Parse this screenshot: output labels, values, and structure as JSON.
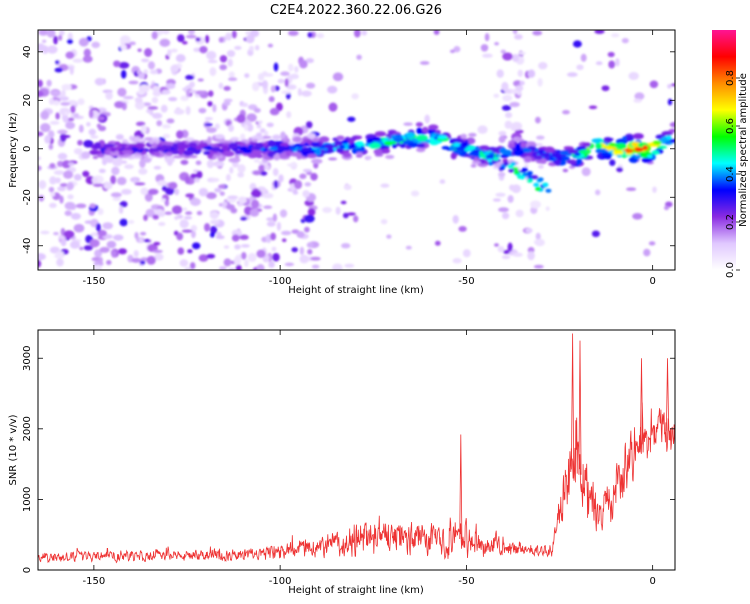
{
  "figure": {
    "title": "C2E4.2022.360.22.06.G26"
  },
  "chart_data": [
    {
      "type": "heatmap",
      "xlabel": "Height of straight line (km)",
      "ylabel": "Frequency (Hz)",
      "xlim": [
        -165,
        6
      ],
      "ylim": [
        -50,
        49
      ],
      "x_ticks": [
        -150,
        -100,
        -50,
        0
      ],
      "x_tick_labels": [
        "-150",
        "-100",
        "-50",
        "0"
      ],
      "y_ticks": [
        -40,
        -20,
        0,
        20,
        40
      ],
      "y_tick_labels": [
        "-40",
        "-20",
        "0",
        "20",
        "40"
      ],
      "colorbar": {
        "label": "Normalized spectral amplitude",
        "range": [
          0,
          1
        ],
        "ticks": [
          0.0,
          0.2,
          0.4,
          0.6,
          0.8
        ],
        "tick_labels": [
          "0.0",
          "0.2",
          "0.4",
          "0.6",
          "0.8"
        ],
        "colormap": [
          "#ffffff",
          "#e0c8ff",
          "#8a2be2",
          "#0000ff",
          "#00ffff",
          "#00ff00",
          "#ffff00",
          "#ff8c00",
          "#ff0000",
          "#ff1493"
        ]
      },
      "ridge": {
        "x": [
          -150,
          -120,
          -100,
          -90,
          -80,
          -70,
          -60,
          -55,
          -50,
          -45,
          -40,
          -35,
          -30,
          -25,
          -20,
          -15,
          -10,
          -5,
          0,
          5
        ],
        "frequency": [
          0,
          0,
          0,
          0,
          1,
          3,
          5,
          2,
          0,
          -3,
          -2,
          0,
          -2,
          -4,
          -3,
          1,
          0,
          0,
          0,
          4
        ],
        "amplitude": [
          0.3,
          0.35,
          0.4,
          0.45,
          0.5,
          0.55,
          0.6,
          0.6,
          0.55,
          0.5,
          0.45,
          0.4,
          0.4,
          0.5,
          0.6,
          0.65,
          0.85,
          0.9,
          0.85,
          0.5
        ]
      },
      "grid": false
    },
    {
      "type": "line",
      "xlabel": "Height of straight line (km)",
      "ylabel": "SNR (10 * v/v)",
      "xlim": [
        -165,
        6
      ],
      "ylim": [
        0,
        3400
      ],
      "x_ticks": [
        -150,
        -100,
        -50,
        0
      ],
      "x_tick_labels": [
        "-150",
        "-100",
        "-50",
        "0"
      ],
      "y_ticks": [
        0,
        1000,
        2000,
        3000
      ],
      "y_tick_labels": [
        "0",
        "1000",
        "2000",
        "3000"
      ],
      "line_color": "#ee3333",
      "envelope": {
        "x": [
          -165,
          -150,
          -130,
          -110,
          -100,
          -90,
          -80,
          -70,
          -60,
          -50,
          -45,
          -40,
          -35,
          -30,
          -27,
          -25,
          -23,
          -21,
          -19,
          -15,
          -10,
          -5,
          0,
          3,
          6
        ],
        "mean": [
          180,
          190,
          200,
          220,
          250,
          330,
          420,
          450,
          430,
          440,
          390,
          330,
          290,
          260,
          300,
          800,
          1200,
          1500,
          1300,
          700,
          1100,
          1700,
          1900,
          2000,
          1900
        ],
        "spread": [
          110,
          120,
          130,
          150,
          180,
          250,
          380,
          400,
          380,
          420,
          330,
          230,
          160,
          130,
          160,
          500,
          800,
          900,
          800,
          500,
          550,
          600,
          500,
          500,
          400
        ]
      },
      "peaks": [
        {
          "x": -51.5,
          "y": 1920
        },
        {
          "x": -21.5,
          "y": 3350
        },
        {
          "x": -19.5,
          "y": 3250
        },
        {
          "x": -3,
          "y": 3000
        },
        {
          "x": 4,
          "y": 3000
        }
      ],
      "grid": false
    }
  ]
}
